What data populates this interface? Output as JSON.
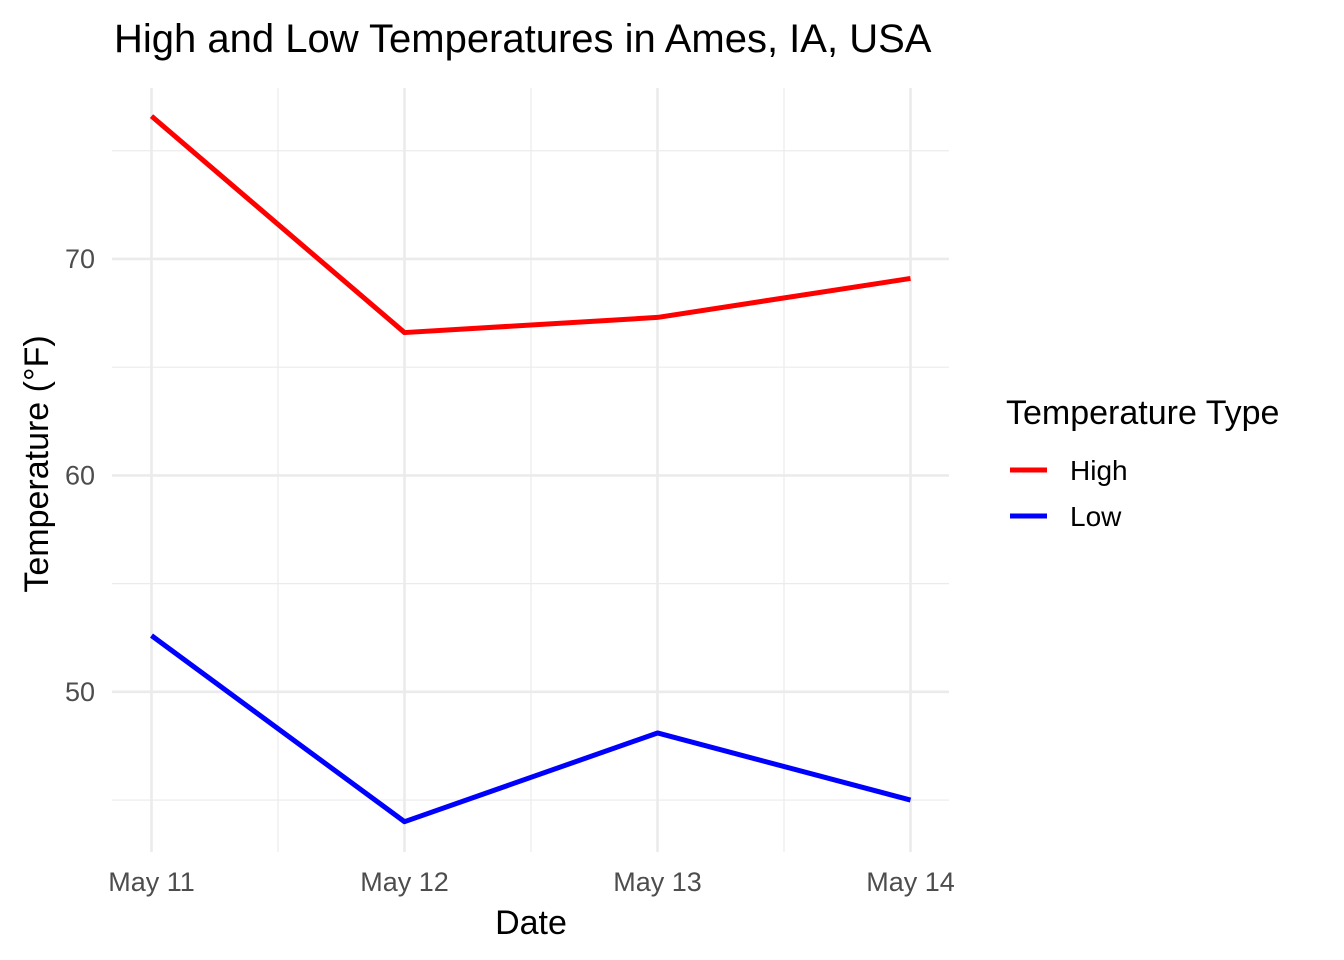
{
  "chart_data": {
    "type": "line",
    "title": "High and Low Temperatures in Ames, IA, USA",
    "xlabel": "Date",
    "ylabel": "Temperature (°F)",
    "categories": [
      "May 11",
      "May 12",
      "May 13",
      "May 14"
    ],
    "yticks": [
      50,
      60,
      70
    ],
    "ylim": [
      42.6,
      77.9
    ],
    "grid": true,
    "legend": {
      "title": "Temperature Type",
      "placement": "right"
    },
    "series": [
      {
        "name": "High",
        "color": "#ff0000",
        "values": [
          76.6,
          66.6,
          67.3,
          69.1
        ]
      },
      {
        "name": "Low",
        "color": "#0000ff",
        "values": [
          52.6,
          44.0,
          48.1,
          45.0
        ]
      }
    ]
  }
}
